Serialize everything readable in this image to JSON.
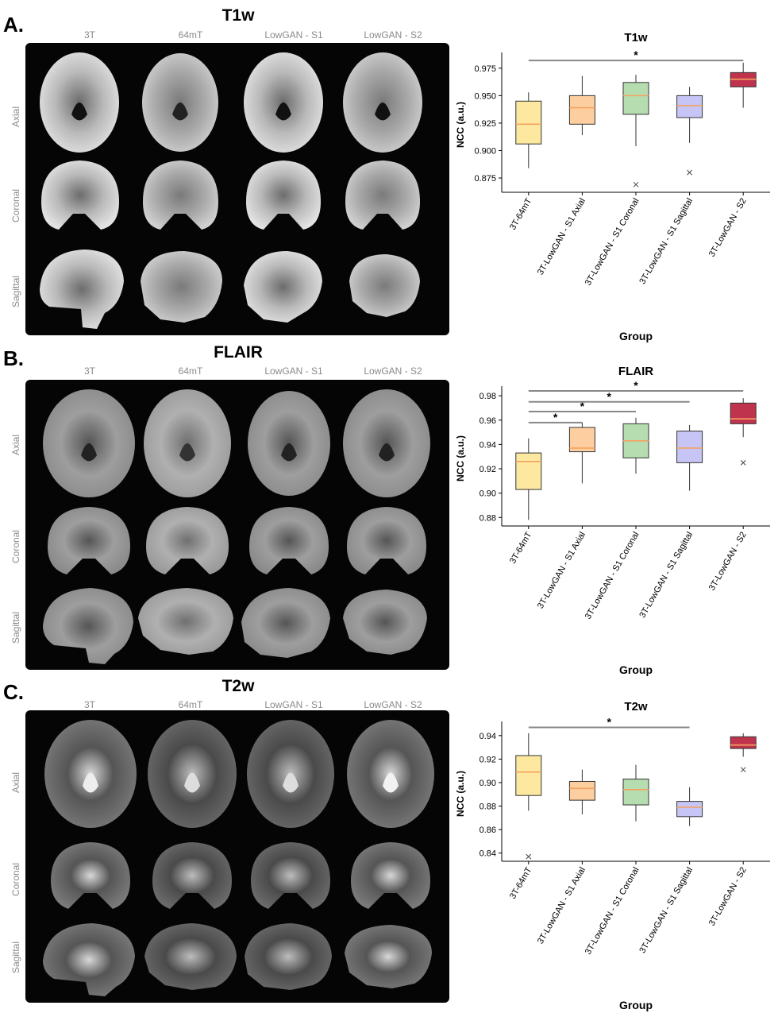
{
  "panels": [
    {
      "letter": "A.",
      "title": "T1w",
      "columns": [
        "3T",
        "64mT",
        "LowGAN - S1",
        "LowGAN - S2"
      ],
      "rows": [
        "Axial",
        "Coronal",
        "Sagittal"
      ]
    },
    {
      "letter": "B.",
      "title": "FLAIR",
      "columns": [
        "3T",
        "64mT",
        "LowGAN - S1",
        "LowGAN - S2"
      ],
      "rows": [
        "Axial",
        "Coronal",
        "Sagittal"
      ]
    },
    {
      "letter": "C.",
      "title": "T2w",
      "columns": [
        "3T",
        "64mT",
        "LowGAN - S1",
        "LowGAN - S2"
      ],
      "rows": [
        "Axial",
        "Coronal",
        "Sagittal"
      ]
    }
  ],
  "chart_data": [
    {
      "type": "box",
      "title": "T1w",
      "xlabel": "Group",
      "ylabel": "NCC (a.u.)",
      "categories": [
        "3T-64mT",
        "3T-LowGAN - S1 Axial",
        "3T-LowGAN - S1 Coronal",
        "3T-LowGAN - S1 Sagittal",
        "3T-LowGAN - S2"
      ],
      "colors": [
        "#fde8a0",
        "#fdcfa0",
        "#b5ddb0",
        "#c7c5f5",
        "#c0334d"
      ],
      "median_color": "#f4a261",
      "boxes": [
        {
          "whislo": 0.884,
          "q1": 0.906,
          "med": 0.924,
          "q3": 0.945,
          "whishi": 0.953,
          "fliers": []
        },
        {
          "whislo": 0.914,
          "q1": 0.924,
          "med": 0.939,
          "q3": 0.95,
          "whishi": 0.968,
          "fliers": []
        },
        {
          "whislo": 0.904,
          "q1": 0.933,
          "med": 0.95,
          "q3": 0.962,
          "whishi": 0.969,
          "fliers": [
            0.869
          ]
        },
        {
          "whislo": 0.907,
          "q1": 0.93,
          "med": 0.941,
          "q3": 0.95,
          "whishi": 0.958,
          "fliers": [
            0.88
          ]
        },
        {
          "whislo": 0.939,
          "q1": 0.958,
          "med": 0.965,
          "q3": 0.971,
          "whishi": 0.98,
          "fliers": []
        }
      ],
      "ylim": [
        0.862,
        0.985
      ],
      "yticks": [
        "0.875",
        "0.900",
        "0.925",
        "0.950",
        "0.975"
      ],
      "yticks_values": [
        0.875,
        0.9,
        0.925,
        0.95,
        0.975
      ],
      "significance": [
        {
          "from": 0,
          "to": 4,
          "y": 0.982,
          "label": "*"
        }
      ]
    },
    {
      "type": "box",
      "title": "FLAIR",
      "xlabel": "Group",
      "ylabel": "NCC (a.u.)",
      "categories": [
        "3T-64mT",
        "3T-LowGAN - S1 Axial",
        "3T-LowGAN - S1 Coronal",
        "3T-LowGAN - S1 Sagittal",
        "3T-LowGAN - S2"
      ],
      "colors": [
        "#fde8a0",
        "#fdcfa0",
        "#b5ddb0",
        "#c7c5f5",
        "#c0334d"
      ],
      "median_color": "#f4a261",
      "boxes": [
        {
          "whislo": 0.878,
          "q1": 0.903,
          "med": 0.926,
          "q3": 0.933,
          "whishi": 0.945,
          "fliers": []
        },
        {
          "whislo": 0.908,
          "q1": 0.934,
          "med": 0.937,
          "q3": 0.954,
          "whishi": 0.958,
          "fliers": []
        },
        {
          "whislo": 0.916,
          "q1": 0.929,
          "med": 0.943,
          "q3": 0.957,
          "whishi": 0.962,
          "fliers": []
        },
        {
          "whislo": 0.902,
          "q1": 0.925,
          "med": 0.937,
          "q3": 0.951,
          "whishi": 0.956,
          "fliers": []
        },
        {
          "whislo": 0.946,
          "q1": 0.957,
          "med": 0.961,
          "q3": 0.974,
          "whishi": 0.978,
          "fliers": [
            0.925
          ]
        }
      ],
      "ylim": [
        0.873,
        0.984
      ],
      "yticks": [
        "0.88",
        "0.90",
        "0.92",
        "0.94",
        "0.96",
        "0.98"
      ],
      "yticks_values": [
        0.88,
        0.9,
        0.92,
        0.94,
        0.96,
        0.98
      ],
      "significance": [
        {
          "from": 0,
          "to": 1,
          "y": 0.958,
          "label": "*"
        },
        {
          "from": 0,
          "to": 2,
          "y": 0.967,
          "label": "*"
        },
        {
          "from": 0,
          "to": 3,
          "y": 0.975,
          "label": "*"
        },
        {
          "from": 0,
          "to": 4,
          "y": 0.984,
          "label": "*"
        }
      ]
    },
    {
      "type": "box",
      "title": "T2w",
      "xlabel": "Group",
      "ylabel": "NCC (a.u.)",
      "categories": [
        "3T-64mT",
        "3T-LowGAN - S1 Axial",
        "3T-LowGAN - S1 Coronal",
        "3T-LowGAN - S1 Sagittal",
        "3T-LowGAN - S2"
      ],
      "colors": [
        "#fde8a0",
        "#fdcfa0",
        "#b5ddb0",
        "#c7c5f5",
        "#c0334d"
      ],
      "median_color": "#f4a261",
      "boxes": [
        {
          "whislo": 0.876,
          "q1": 0.889,
          "med": 0.909,
          "q3": 0.923,
          "whishi": 0.942,
          "fliers": [
            0.837
          ]
        },
        {
          "whislo": 0.873,
          "q1": 0.885,
          "med": 0.895,
          "q3": 0.901,
          "whishi": 0.911,
          "fliers": []
        },
        {
          "whislo": 0.867,
          "q1": 0.881,
          "med": 0.894,
          "q3": 0.903,
          "whishi": 0.915,
          "fliers": []
        },
        {
          "whislo": 0.863,
          "q1": 0.871,
          "med": 0.879,
          "q3": 0.884,
          "whishi": 0.896,
          "fliers": []
        },
        {
          "whislo": 0.922,
          "q1": 0.929,
          "med": 0.932,
          "q3": 0.939,
          "whishi": 0.942,
          "fliers": [
            0.911
          ]
        }
      ],
      "ylim": [
        0.833,
        0.948
      ],
      "yticks": [
        "0.84",
        "0.86",
        "0.88",
        "0.90",
        "0.92",
        "0.94"
      ],
      "yticks_values": [
        0.84,
        0.86,
        0.88,
        0.9,
        0.92,
        0.94
      ],
      "significance": [
        {
          "from": 0,
          "to": 3,
          "y": 0.947,
          "label": "*"
        }
      ]
    }
  ]
}
